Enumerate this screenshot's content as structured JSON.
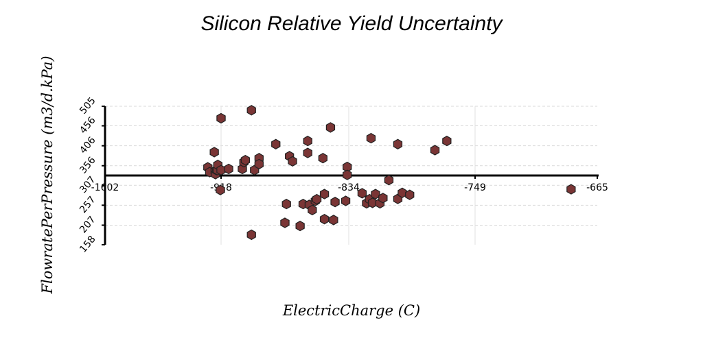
{
  "chart_data": {
    "type": "scatter",
    "title": "Silicon Relative Yield Uncertainty",
    "xlabel": "ElectricCharge (C)",
    "ylabel": "FlowratePerPressure (m3/d.kPa)",
    "x_ticks": [
      "-1602",
      "-918",
      "-834",
      "-749",
      "-665"
    ],
    "y_ticks": [
      "158",
      "207",
      "257",
      "307",
      "356",
      "406",
      "456",
      "505"
    ],
    "grid": true,
    "marker_color": "#7a3535",
    "series": [
      {
        "points": [
          [
            -996,
            352
          ],
          [
            -985,
            340
          ],
          [
            -958,
            390
          ],
          [
            -953,
            342
          ],
          [
            -951,
            335
          ],
          [
            -945,
            345
          ],
          [
            -939,
            345
          ],
          [
            -937,
            358
          ],
          [
            -922,
            295
          ],
          [
            -918,
            345
          ],
          [
            -918,
            475
          ],
          [
            -913,
            348
          ],
          [
            -904,
            348
          ],
          [
            -903,
            365
          ],
          [
            -902,
            370
          ],
          [
            -898,
            495
          ],
          [
            -898,
            183
          ],
          [
            -896,
            345
          ],
          [
            -893,
            375
          ],
          [
            -893,
            360
          ],
          [
            -882,
            410
          ],
          [
            -876,
            213
          ],
          [
            -875,
            260
          ],
          [
            -873,
            380
          ],
          [
            -871,
            367
          ],
          [
            -866,
            205
          ],
          [
            -864,
            260
          ],
          [
            -861,
            418
          ],
          [
            -861,
            388
          ],
          [
            -860,
            258
          ],
          [
            -858,
            245
          ],
          [
            -856,
            268
          ],
          [
            -855,
            272
          ],
          [
            -851,
            375
          ],
          [
            -850,
            285
          ],
          [
            -850,
            222
          ],
          [
            -846,
            452
          ],
          [
            -844,
            220
          ],
          [
            -843,
            265
          ],
          [
            -836,
            268
          ],
          [
            -835,
            353
          ],
          [
            -835,
            333
          ],
          [
            -825,
            287
          ],
          [
            -822,
            262
          ],
          [
            -820,
            272
          ],
          [
            -819,
            425
          ],
          [
            -818,
            263
          ],
          [
            -816,
            285
          ],
          [
            -813,
            262
          ],
          [
            -811,
            275
          ],
          [
            -807,
            320
          ],
          [
            -801,
            273
          ],
          [
            -801,
            410
          ],
          [
            -798,
            288
          ],
          [
            -793,
            283
          ],
          [
            -776,
            395
          ],
          [
            -768,
            418
          ],
          [
            -683,
            297
          ]
        ]
      }
    ]
  }
}
